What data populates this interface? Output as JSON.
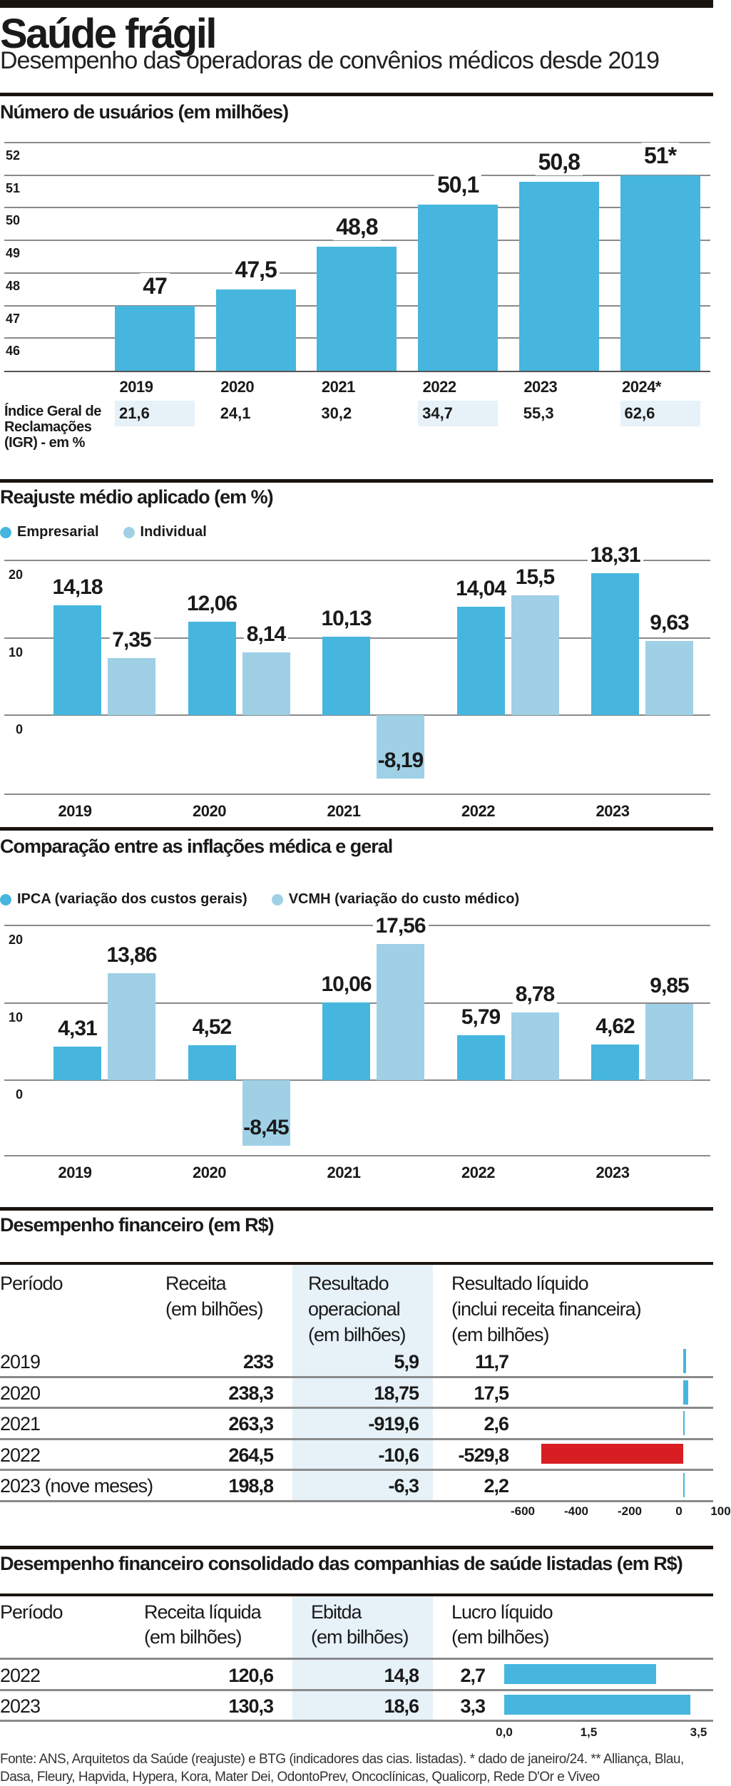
{
  "header": {
    "title": "Saúde frágil",
    "subtitle": "Desempenho das operadoras de convênios médicos desde 2019"
  },
  "colors": {
    "primary": "#46b6df",
    "secondary": "#9fd0e6",
    "negative": "#d81e22",
    "shade": "#e6f1f8"
  },
  "chart_data": [
    {
      "type": "bar",
      "title": "Número de usuários (em milhões)",
      "categories": [
        "2019",
        "2020",
        "2021",
        "2022",
        "2023",
        "2024*"
      ],
      "values": [
        47,
        47.5,
        48.8,
        50.1,
        50.8,
        51
      ],
      "value_labels": [
        "47",
        "47,5",
        "48,8",
        "50,1",
        "50,8",
        "51*"
      ],
      "yticks": [
        "52",
        "51",
        "50",
        "49",
        "48",
        "47",
        "46"
      ],
      "ylim": [
        45,
        52
      ],
      "grid": true,
      "igr": {
        "label_lines": [
          "Índice Geral de",
          "Reclamações",
          "(IGR) - em %"
        ],
        "values": [
          "21,6",
          "24,1",
          "30,2",
          "34,7",
          "55,3",
          "62,6"
        ],
        "shaded": [
          true,
          false,
          false,
          true,
          false,
          true
        ]
      }
    },
    {
      "type": "bar",
      "title": "Reajuste médio aplicado (em %)",
      "categories": [
        "2019",
        "2020",
        "2021",
        "2022",
        "2023"
      ],
      "series": [
        {
          "name": "Empresarial",
          "values": [
            14.18,
            12.06,
            10.13,
            14.04,
            18.31
          ],
          "labels": [
            "14,18",
            "12,06",
            "10,13",
            "14,04",
            "18,31"
          ]
        },
        {
          "name": "Individual",
          "values": [
            7.35,
            8.14,
            -8.19,
            15.5,
            9.63
          ],
          "labels": [
            "7,35",
            "8,14",
            "-8,19",
            "15,5",
            "9,63"
          ]
        }
      ],
      "yticks": [
        "20",
        "10",
        "0"
      ],
      "ylim": [
        -10,
        20
      ],
      "grid": true,
      "legend": "top-left"
    },
    {
      "type": "bar",
      "title": "Comparação entre as inflações médica e geral",
      "categories": [
        "2019",
        "2020",
        "2021",
        "2022",
        "2023"
      ],
      "series": [
        {
          "name": "IPCA (variação dos custos gerais)",
          "values": [
            4.31,
            4.52,
            10.06,
            5.79,
            4.62
          ],
          "labels": [
            "4,31",
            "4,52",
            "10,06",
            "5,79",
            "4,62"
          ]
        },
        {
          "name": "VCMH (variação do custo médico)",
          "values": [
            13.86,
            -8.45,
            17.56,
            8.78,
            9.85
          ],
          "labels": [
            "13,86",
            "-8,45",
            "17,56",
            "8,78",
            "9,85"
          ]
        }
      ],
      "yticks": [
        "20",
        "10",
        "0"
      ],
      "ylim": [
        -10,
        20
      ],
      "grid": true,
      "legend": "top-left"
    },
    {
      "type": "table",
      "title": "Desempenho financeiro (em R$)",
      "headers": [
        [
          "Período"
        ],
        [
          "Receita",
          "(em bilhões)"
        ],
        [
          "Resultado",
          "operacional",
          "(em bilhões)"
        ],
        [
          "Resultado líquido",
          "(inclui receita financeira)",
          "(em bilhões)"
        ]
      ],
      "rows": [
        {
          "periodo": "2019",
          "receita": "233",
          "operacional": "5,9",
          "liquido": "11,7",
          "liquido_value": 11.7
        },
        {
          "periodo": "2020",
          "receita": "238,3",
          "operacional": "18,75",
          "liquido": "17,5",
          "liquido_value": 17.5
        },
        {
          "periodo": "2021",
          "receita": "263,3",
          "operacional": "-919,6",
          "liquido": "2,6",
          "liquido_value": 2.6
        },
        {
          "periodo": "2022",
          "receita": "264,5",
          "operacional": "-10,6",
          "liquido": "-529,8",
          "liquido_value": -529.8
        },
        {
          "periodo": "2023 (nove meses)",
          "receita": "198,8",
          "operacional": "-6,3",
          "liquido": "2,2",
          "liquido_value": 2.2
        }
      ],
      "bar_axis": {
        "ticks": [
          "-600",
          "-400",
          "-200",
          "0",
          "100"
        ],
        "tick_values": [
          -600,
          -400,
          -200,
          0,
          100
        ],
        "range": [
          -600,
          100
        ]
      }
    },
    {
      "type": "table",
      "title": "Desempenho financeiro consolidado das companhias de saúde listadas  (em R$)",
      "headers": [
        [
          "Período"
        ],
        [
          "Receita líquida",
          "(em bilhões)"
        ],
        [
          "Ebitda",
          "(em bilhões)"
        ],
        [
          "Lucro líquido",
          "(em bilhões)"
        ]
      ],
      "rows": [
        {
          "periodo": "2022",
          "receita": "120,6",
          "ebitda": "14,8",
          "lucro": "2,7",
          "lucro_value": 2.7
        },
        {
          "periodo": "2023",
          "receita": "130,3",
          "ebitda": "18,6",
          "lucro": "3,3",
          "lucro_value": 3.3
        }
      ],
      "bar_axis": {
        "ticks": [
          "0,0",
          "1,5",
          "3,5"
        ],
        "tick_values": [
          0,
          1.5,
          3.5
        ],
        "range": [
          0,
          3.5
        ]
      }
    }
  ],
  "footer": {
    "source": "Fonte: ANS, Arquitetos da Saúde (reajuste) e BTG (indicadores das cias. listadas). * dado de janeiro/24. ** Alliança, Blau, Dasa, Fleury, Hapvida, Hypera, Kora, Mater Dei, OdontoPrev, Oncoclínicas, Qualicorp, Rede D'Or e  Viveo"
  }
}
